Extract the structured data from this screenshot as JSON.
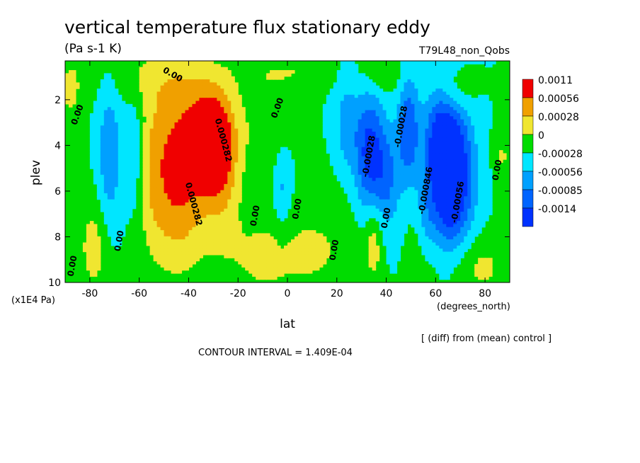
{
  "chart_data": {
    "type": "contour",
    "title": "vertical temperature flux stationary eddy",
    "units": "(Pa s-1 K)",
    "run_label": "T79L48_non_Qobs",
    "xlabel": "lat",
    "xunits": "(degrees_north)",
    "ylabel": "plev",
    "yunits": "(x1E4 Pa)",
    "xlim": [
      -90,
      90
    ],
    "ylim": [
      0.3,
      10
    ],
    "y_reversed": true,
    "x_ticks": [
      -80,
      -60,
      -40,
      -20,
      0,
      20,
      40,
      60,
      80
    ],
    "x_tick_labels": [
      "-80",
      "-60",
      "-40",
      "-20",
      "0",
      "20",
      "40",
      "60",
      "80"
    ],
    "y_ticks": [
      2,
      4,
      6,
      8,
      10
    ],
    "y_tick_labels": [
      "2",
      "4",
      "6",
      "8",
      "10"
    ],
    "note": "[ (diff) from (mean) control ]",
    "contour_interval": "CONTOUR INTERVAL = 1.409E-04",
    "colorbar": {
      "labels": [
        "0.0011",
        "0.00056",
        "0.00028",
        "0",
        "-0.00028",
        "-0.00056",
        "-0.00085",
        "-0.0014"
      ],
      "colors": [
        "#f00000",
        "#f0a000",
        "#f0e630",
        "#00dc00",
        "#00e6ff",
        "#00a0ff",
        "#0064ff",
        "#0032ff"
      ]
    },
    "fill_levels": [
      -0.00085,
      -0.00056,
      -0.00028,
      0,
      0.00028,
      0.00056,
      0.00085
    ],
    "fill_colors": [
      "#0032ff",
      "#0064ff",
      "#00a0ff",
      "#00e6ff",
      "#00dc00",
      "#f0e630",
      "#f0a000",
      "#f00000"
    ],
    "features": [
      {
        "lat": -31,
        "plev": 3.8,
        "amp": 0.00115,
        "sx": 6,
        "sy": 1.4
      },
      {
        "lat": -26,
        "plev": 5.0,
        "amp": 0.00045,
        "sx": 5,
        "sy": 2.2
      },
      {
        "lat": -45,
        "plev": 5.6,
        "amp": 0.0009,
        "sx": 10,
        "sy": 2.6
      },
      {
        "lat": -43,
        "plev": 3.2,
        "amp": 0.00022,
        "sx": 9,
        "sy": 1.4
      },
      {
        "lat": -55,
        "plev": 4.5,
        "amp": 0.00012,
        "sx": 3,
        "sy": 2.5
      },
      {
        "lat": -72,
        "plev": 4.6,
        "amp": -0.00052,
        "sx": 3.5,
        "sy": 2.5
      },
      {
        "lat": -62,
        "plev": 4.5,
        "amp": -0.00035,
        "sx": 3,
        "sy": 2.0
      },
      {
        "lat": -78,
        "plev": 8.4,
        "amp": 0.0004,
        "sx": 5,
        "sy": 1.7
      },
      {
        "lat": -88,
        "plev": 1.6,
        "amp": 0.0003,
        "sx": 4,
        "sy": 1.3
      },
      {
        "lat": -50,
        "plev": 1.0,
        "amp": 0.0003,
        "sx": 20,
        "sy": 0.9
      },
      {
        "lat": -12,
        "plev": 8.9,
        "amp": 0.0003,
        "sx": 10,
        "sy": 1.5
      },
      {
        "lat": -2,
        "plev": 6.0,
        "amp": -0.00038,
        "sx": 2.5,
        "sy": 1.2
      },
      {
        "lat": -10,
        "plev": 3.0,
        "amp": 0.00025,
        "sx": 7,
        "sy": 1.6
      },
      {
        "lat": 12,
        "plev": 8.6,
        "amp": 0.0003,
        "sx": 12,
        "sy": 1.7
      },
      {
        "lat": 38,
        "plev": 0.8,
        "amp": 0.0003,
        "sx": 6,
        "sy": 0.6
      },
      {
        "lat": 2,
        "plev": 0.8,
        "amp": 0.00025,
        "sx": 10,
        "sy": 0.5
      },
      {
        "lat": 33,
        "plev": 4.3,
        "amp": -0.00095,
        "sx": 4,
        "sy": 1.8
      },
      {
        "lat": 40,
        "plev": 5.4,
        "amp": -0.0006,
        "sx": 4,
        "sy": 1.6
      },
      {
        "lat": 49,
        "plev": 3.3,
        "amp": -0.0008,
        "sx": 3,
        "sy": 1.6
      },
      {
        "lat": 24,
        "plev": 3.1,
        "amp": -0.00045,
        "sx": 3,
        "sy": 1.3
      },
      {
        "lat": 35,
        "plev": 8.0,
        "amp": 0.00045,
        "sx": 2.5,
        "sy": 1.4
      },
      {
        "lat": 55,
        "plev": 8.4,
        "amp": 0.0003,
        "sx": 4,
        "sy": 1.5
      },
      {
        "lat": 66,
        "plev": 5.3,
        "amp": -0.0016,
        "sx": 6,
        "sy": 2.1
      },
      {
        "lat": 61,
        "plev": 3.6,
        "amp": -0.0005,
        "sx": 4,
        "sy": 1.3
      },
      {
        "lat": 69,
        "plev": 1.6,
        "amp": 0.0003,
        "sx": 5,
        "sy": 0.7
      },
      {
        "lat": 77,
        "plev": 9.3,
        "amp": 0.00035,
        "sx": 10,
        "sy": 1.0
      },
      {
        "lat": 87,
        "plev": 4.5,
        "amp": 0.0003,
        "sx": 2.5,
        "sy": 1.2
      },
      {
        "lat": 56,
        "plev": 7.4,
        "amp": -0.0004,
        "sx": 3,
        "sy": 1.4
      }
    ],
    "contour_labels": [
      {
        "text": "0.00",
        "lat": -84,
        "plev": 2.7,
        "rotate": -70
      },
      {
        "text": "0.00",
        "lat": -47,
        "plev": 1.0,
        "rotate": 30
      },
      {
        "text": "0.00",
        "lat": -3,
        "plev": 2.4,
        "rotate": -70
      },
      {
        "text": "0.00",
        "lat": 5,
        "plev": 6.8,
        "rotate": -80
      },
      {
        "text": "0.00",
        "lat": -12,
        "plev": 7.1,
        "rotate": -80
      },
      {
        "text": "0.00",
        "lat": 41,
        "plev": 7.2,
        "rotate": -80
      },
      {
        "text": "0.00",
        "lat": 20,
        "plev": 8.6,
        "rotate": -80
      },
      {
        "text": "0.00",
        "lat": -67,
        "plev": 8.2,
        "rotate": -80
      },
      {
        "text": "0.00",
        "lat": -86,
        "plev": 9.3,
        "rotate": -80
      },
      {
        "text": "0.00",
        "lat": 86,
        "plev": 5.1,
        "rotate": -80
      },
      {
        "text": "0.000282",
        "lat": -39,
        "plev": 6.6,
        "rotate": 75
      },
      {
        "text": "0.000282",
        "lat": -27,
        "plev": 3.8,
        "rotate": 75
      },
      {
        "text": "-0.00028",
        "lat": 34,
        "plev": 4.5,
        "rotate": -80
      },
      {
        "text": "-0.00028",
        "lat": 47,
        "plev": 3.2,
        "rotate": -80
      },
      {
        "text": "-0.000846",
        "lat": 57,
        "plev": 6.0,
        "rotate": -80
      },
      {
        "text": "-0.00056",
        "lat": 70,
        "plev": 6.5,
        "rotate": -80
      }
    ]
  }
}
